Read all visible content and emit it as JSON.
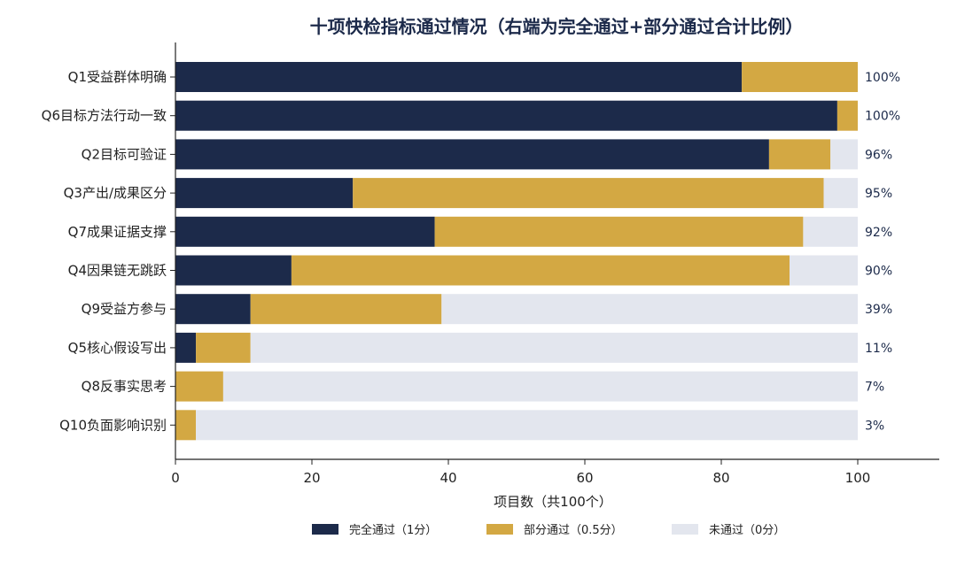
{
  "chart_data": {
    "type": "bar",
    "orientation": "horizontal",
    "stacked": true,
    "title": "十项快检指标通过情况（右端为完全通过+部分通过合计比例）",
    "xlabel": "项目数（共100个）",
    "ylabel": "",
    "xlim": [
      0,
      100
    ],
    "xticks": [
      "0",
      "20",
      "40",
      "60",
      "80",
      "100"
    ],
    "categories": [
      "Q1受益群体明确",
      "Q6目标方法行动一致",
      "Q2目标可验证",
      "Q3产出/成果区分",
      "Q7成果证据支撑",
      "Q4因果链无跳跃",
      "Q9受益方参与",
      "Q5核心假设写出",
      "Q8反事实思考",
      "Q10负面影响识别"
    ],
    "series": [
      {
        "name": "完全通过（1分）",
        "color": "#1c2a4a",
        "values": [
          83,
          97,
          87,
          26,
          38,
          17,
          11,
          3,
          0,
          0
        ]
      },
      {
        "name": "部分通过（0.5分）",
        "color": "#d3a843",
        "values": [
          17,
          3,
          9,
          69,
          54,
          73,
          28,
          8,
          7,
          3
        ]
      },
      {
        "name": "未通过（0分）",
        "color": "#e3e6ee",
        "values": [
          0,
          0,
          4,
          5,
          8,
          10,
          61,
          89,
          93,
          97
        ]
      }
    ],
    "annotations": [
      "100%",
      "100%",
      "96%",
      "95%",
      "92%",
      "90%",
      "39%",
      "11%",
      "7%",
      "3%"
    ],
    "legend": "bottom",
    "grid": false
  }
}
